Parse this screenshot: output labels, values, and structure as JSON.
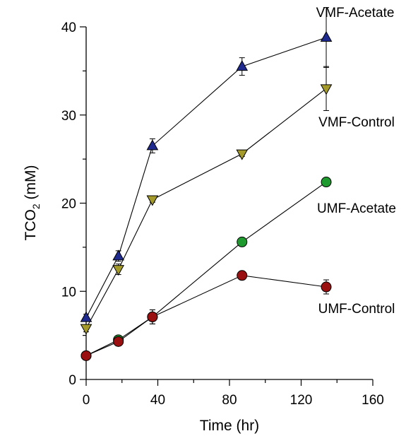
{
  "chart_data": {
    "type": "line",
    "xlabel": "Time (hr)",
    "ylabel": {
      "main": "TCO",
      "sub": "2",
      "rest": " (mM)"
    },
    "xlim": [
      0,
      160
    ],
    "ylim": [
      0,
      40
    ],
    "x_ticks": [
      "0",
      "40",
      "80",
      "120",
      "160"
    ],
    "y_ticks": [
      "0",
      "10",
      "20",
      "30",
      "40"
    ],
    "grid": false,
    "series": [
      {
        "name": "VMF-Acetate",
        "marker": "triangle-up",
        "color": "#1f2a8f",
        "x": [
          0,
          18,
          37,
          87,
          134
        ],
        "y": [
          7.0,
          14.0,
          26.5,
          35.5,
          38.8
        ],
        "err": [
          0.4,
          0.6,
          0.8,
          1.0,
          3.4
        ]
      },
      {
        "name": "VMF-Control",
        "marker": "triangle-down",
        "color": "#a39a2a",
        "x": [
          0,
          18,
          37,
          87,
          134
        ],
        "y": [
          5.8,
          12.5,
          20.4,
          25.6,
          33.0
        ],
        "err": [
          0.4,
          0.6,
          0.3,
          0.3,
          2.5
        ]
      },
      {
        "name": "UMF-Acetate",
        "marker": "circle",
        "color": "#1f9a2f",
        "x": [
          0,
          18,
          37,
          87,
          134
        ],
        "y": [
          2.7,
          4.5,
          7.1,
          15.6,
          22.4
        ],
        "err": [
          0.2,
          0.3,
          0.8,
          0.3,
          0.3
        ]
      },
      {
        "name": "UMF-Control",
        "marker": "circle",
        "color": "#9a1010",
        "x": [
          0,
          18,
          37,
          87,
          134
        ],
        "y": [
          2.7,
          4.3,
          7.1,
          11.8,
          10.5
        ],
        "err": [
          0.2,
          0.3,
          0.8,
          0.3,
          0.8
        ]
      }
    ]
  }
}
